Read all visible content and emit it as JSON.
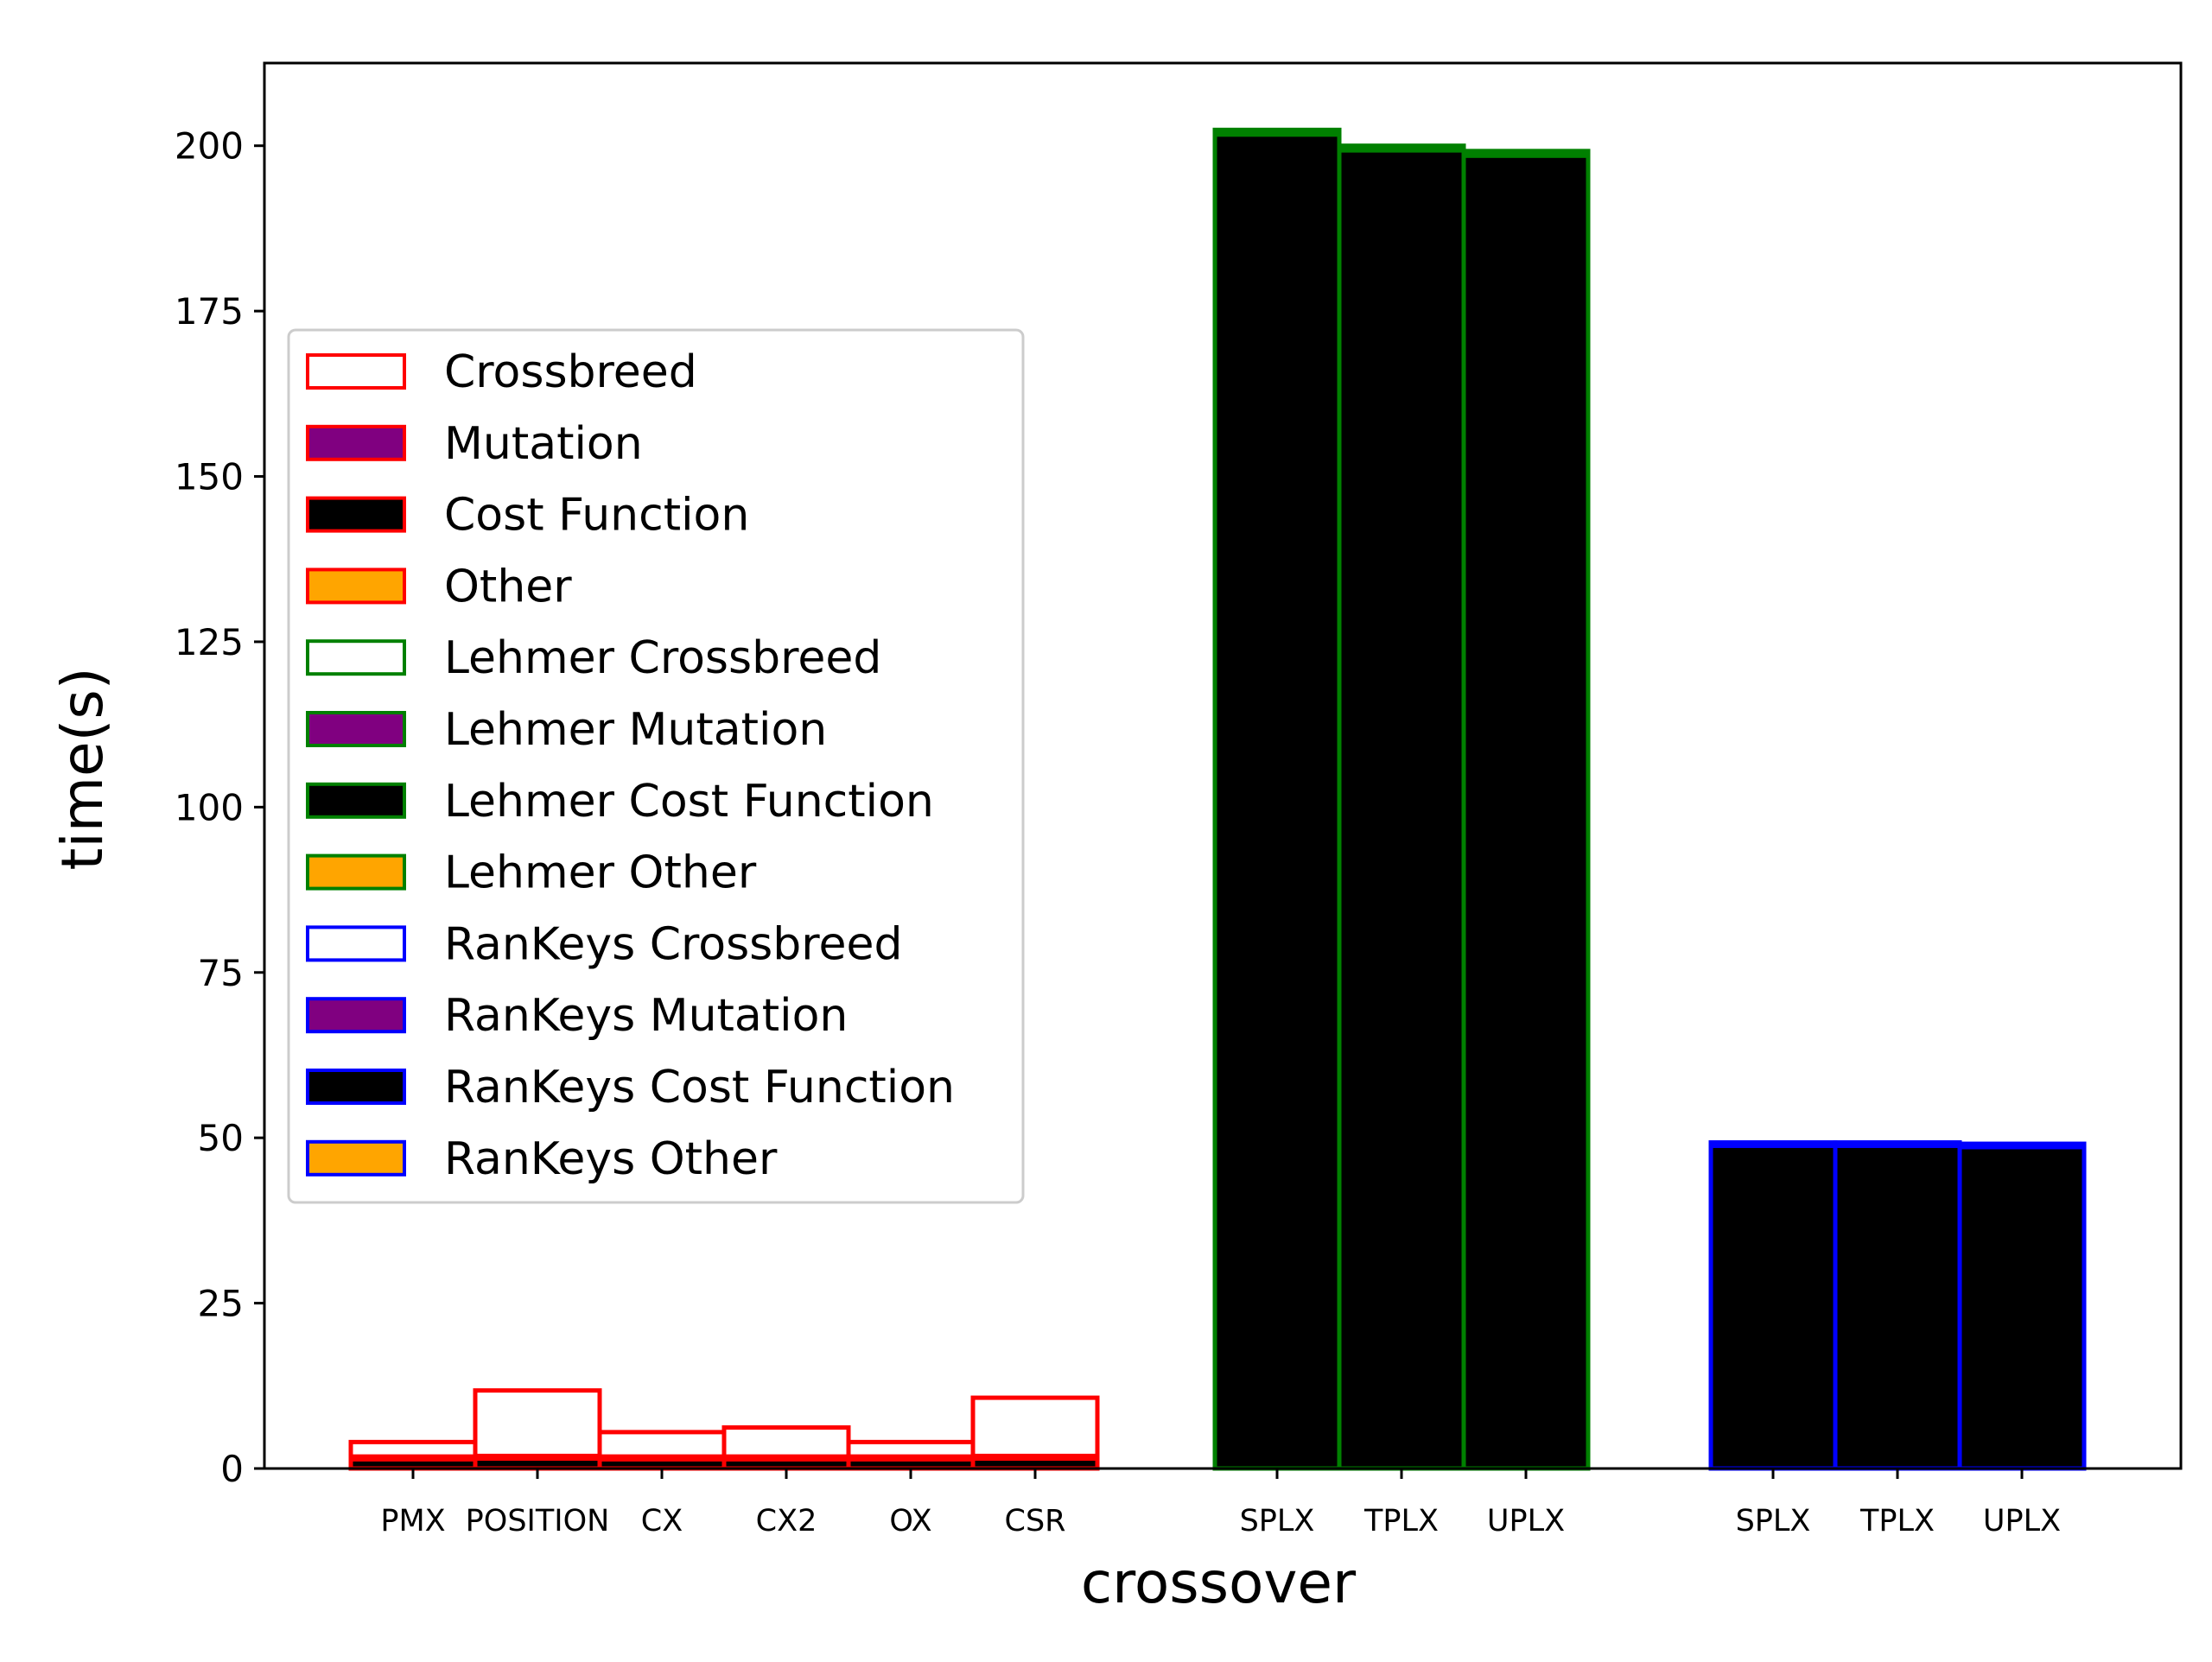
{
  "chart_data": {
    "type": "bar",
    "stacked": true,
    "xlabel": "crossover",
    "ylabel": "time(s)",
    "ylim": [
      0,
      212.5
    ],
    "yticks": [
      0,
      25,
      50,
      75,
      100,
      125,
      150,
      175,
      200
    ],
    "grid": false,
    "legend_position": "center-left",
    "groups": [
      {
        "name": "",
        "edge_color": "#ff0000",
        "categories": [
          "PMX",
          "POSITION",
          "CX",
          "CX2",
          "OX",
          "CSR"
        ],
        "series": [
          {
            "name": "Cost Function",
            "fill": "#000000",
            "values": [
              1.4,
              1.5,
              1.4,
              1.4,
              1.4,
              1.5
            ]
          },
          {
            "name": "Other",
            "fill": "#ffa500",
            "values": [
              0.2,
              0.2,
              0.2,
              0.2,
              0.2,
              0.2
            ]
          },
          {
            "name": "Mutation",
            "fill": "#800080",
            "values": [
              0.2,
              0.2,
              0.2,
              0.2,
              0.2,
              0.2
            ]
          },
          {
            "name": "Crossbreed",
            "fill": "none",
            "values": [
              2.2,
              9.9,
              3.7,
              4.4,
              2.2,
              8.8
            ]
          }
        ]
      },
      {
        "name": "Lehmer",
        "edge_color": "#008000",
        "categories": [
          "SPLX",
          "TPLX",
          "UPLX"
        ],
        "series": [
          {
            "name": "Lehmer Cost Function",
            "fill": "#000000",
            "values": [
              201.7,
              199.3,
              198.5
            ]
          },
          {
            "name": "Lehmer Other",
            "fill": "#ffa500",
            "values": [
              0.3,
              0.3,
              0.3
            ]
          },
          {
            "name": "Lehmer Mutation",
            "fill": "#800080",
            "values": [
              0.2,
              0.2,
              0.2
            ]
          },
          {
            "name": "Lehmer Crossbreed",
            "fill": "none",
            "values": [
              0.2,
              0.2,
              0.2
            ]
          }
        ]
      },
      {
        "name": "RanKeys",
        "edge_color": "#0000ff",
        "categories": [
          "SPLX",
          "TPLX",
          "UPLX"
        ],
        "series": [
          {
            "name": "RanKeys Cost Function",
            "fill": "#000000",
            "values": [
              48.8,
              48.8,
              48.6
            ]
          },
          {
            "name": "RanKeys Other",
            "fill": "#ffa500",
            "values": [
              0.2,
              0.2,
              0.2
            ]
          },
          {
            "name": "RanKeys Mutation",
            "fill": "#800080",
            "values": [
              0.2,
              0.2,
              0.2
            ]
          },
          {
            "name": "RanKeys Crossbreed",
            "fill": "none",
            "values": [
              0.1,
              0.1,
              0.1
            ]
          }
        ]
      }
    ],
    "legend": [
      {
        "label": "Crossbreed",
        "fill": "#ffffff",
        "edge": "#ff0000"
      },
      {
        "label": "Mutation",
        "fill": "#800080",
        "edge": "#ff0000"
      },
      {
        "label": "Cost Function",
        "fill": "#000000",
        "edge": "#ff0000"
      },
      {
        "label": "Other",
        "fill": "#ffa500",
        "edge": "#ff0000"
      },
      {
        "label": "Lehmer Crossbreed",
        "fill": "#ffffff",
        "edge": "#008000"
      },
      {
        "label": "Lehmer Mutation",
        "fill": "#800080",
        "edge": "#008000"
      },
      {
        "label": "Lehmer Cost Function",
        "fill": "#000000",
        "edge": "#008000"
      },
      {
        "label": "Lehmer Other",
        "fill": "#ffa500",
        "edge": "#008000"
      },
      {
        "label": "RanKeys Crossbreed",
        "fill": "#ffffff",
        "edge": "#0000ff"
      },
      {
        "label": "RanKeys Mutation",
        "fill": "#800080",
        "edge": "#0000ff"
      },
      {
        "label": "RanKeys Cost Function",
        "fill": "#000000",
        "edge": "#0000ff"
      },
      {
        "label": "RanKeys Other",
        "fill": "#ffa500",
        "edge": "#0000ff"
      }
    ]
  }
}
